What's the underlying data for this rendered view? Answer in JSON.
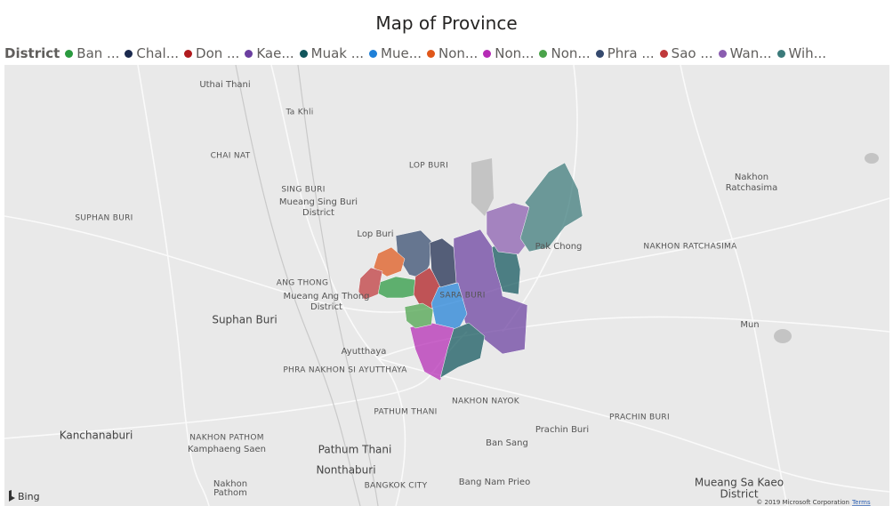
{
  "title": "Map of Province",
  "legend": {
    "label": "District",
    "items": [
      {
        "name": "Ban ...",
        "color": "#2a9a3f"
      },
      {
        "name": "Chal...",
        "color": "#1b2a4e"
      },
      {
        "name": "Don ...",
        "color": "#b01a1e"
      },
      {
        "name": "Kae...",
        "color": "#6b3fa0"
      },
      {
        "name": "Muak ...",
        "color": "#11565c"
      },
      {
        "name": "Mue...",
        "color": "#1f80d8"
      },
      {
        "name": "Non...",
        "color": "#e0571a"
      },
      {
        "name": "Non...",
        "color": "#b52bb5"
      },
      {
        "name": "Non...",
        "color": "#4aa34a"
      },
      {
        "name": "Phra ...",
        "color": "#354a6e"
      },
      {
        "name": "Sao ...",
        "color": "#c0393b"
      },
      {
        "name": "Wan...",
        "color": "#8a5db0"
      },
      {
        "name": "Wih...",
        "color": "#3b7a7a"
      }
    ]
  },
  "map": {
    "places": [
      "Uthai Thani",
      "Ta Khli",
      "CHAI NAT",
      "LOP BURI",
      "SING BURI",
      "Mueang Sing Buri",
      "District",
      "SUPHAN BURI",
      "Lop Buri",
      "Pak Chong",
      "NAKHON RATCHASIMA",
      "Nakhon",
      "Ratchasima",
      "ANG THONG",
      "Mueang Ang Thong",
      "District",
      "SARA BURI",
      "Suphan Buri",
      "Ayutthaya",
      "PHRA NAKHON SI AYUTTHAYA",
      "Mun",
      "PATHUM THANI",
      "NAKHON NAYOK",
      "PRACHIN BURI",
      "Prachin Buri",
      "Kanchanaburi",
      "NAKHON PATHOM",
      "Kamphaeng Saen",
      "Pathum Thani",
      "Ban Sang",
      "Nonthaburi",
      "Nakhon",
      "Pathom",
      "BANGKOK CITY",
      "Bang Nam Prieo",
      "Mueang Sa Kaeo",
      "District"
    ],
    "provider": "Bing",
    "copyright": "© 2019 Microsoft Corporation",
    "terms": "Terms"
  }
}
